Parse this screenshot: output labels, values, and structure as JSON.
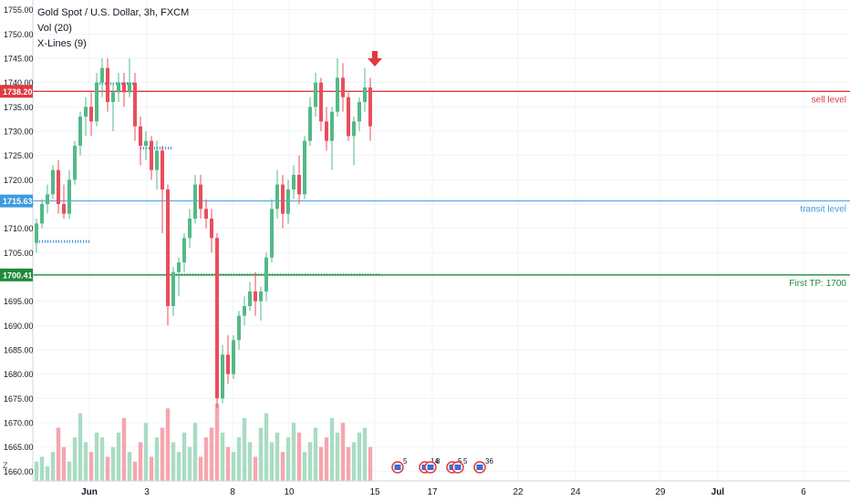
{
  "legend": {
    "title": "Gold Spot / U.S. Dollar, 3h, FXCM",
    "study_vol": "Vol (20)",
    "study_xlines": "X-Lines (9)"
  },
  "colors": {
    "up": "#53b987",
    "down": "#eb4d5c",
    "vol_up": "#a9dcc3",
    "vol_down": "#f5a6ae",
    "sell": "#e0393e",
    "transit": "#3d9be0",
    "tp": "#1e8a3a",
    "xline": "#3a8fd6",
    "xline_tp": "#7fcaa2"
  },
  "chart_data": {
    "type": "candlestick",
    "ylim": [
      1658,
      1757
    ],
    "yticks": [
      1660,
      1665,
      1670,
      1675,
      1680,
      1685,
      1690,
      1695,
      1700,
      1705,
      1710,
      1715,
      1720,
      1725,
      1730,
      1735,
      1740,
      1745,
      1750,
      1755
    ],
    "xticks": [
      "Jun",
      "3",
      "8",
      "10",
      "15",
      "17",
      "22",
      "24",
      "29",
      "Jul",
      "6"
    ],
    "bar_count": 62,
    "ohlc": [
      [
        1707,
        1712,
        1705,
        1711
      ],
      [
        1711,
        1716,
        1710,
        1715
      ],
      [
        1715,
        1719,
        1713,
        1717
      ],
      [
        1717,
        1723,
        1716,
        1722
      ],
      [
        1722,
        1724,
        1713,
        1715
      ],
      [
        1715,
        1719,
        1712,
        1713
      ],
      [
        1713,
        1722,
        1712,
        1720
      ],
      [
        1720,
        1728,
        1719,
        1727
      ],
      [
        1727,
        1734,
        1725,
        1733
      ],
      [
        1733,
        1737,
        1729,
        1735
      ],
      [
        1735,
        1738,
        1729,
        1732
      ],
      [
        1732,
        1742,
        1731,
        1740
      ],
      [
        1740,
        1745,
        1737,
        1743
      ],
      [
        1743,
        1745,
        1734,
        1736
      ],
      [
        1736,
        1740,
        1730,
        1738
      ],
      [
        1738,
        1742,
        1736,
        1740
      ],
      [
        1740,
        1742,
        1735,
        1738
      ],
      [
        1738,
        1745,
        1737,
        1740
      ],
      [
        1740,
        1742,
        1728,
        1731
      ],
      [
        1731,
        1733,
        1723,
        1727
      ],
      [
        1727,
        1730,
        1724,
        1728
      ],
      [
        1728,
        1729,
        1720,
        1722
      ],
      [
        1722,
        1728,
        1718,
        1726
      ],
      [
        1726,
        1727,
        1709,
        1718
      ],
      [
        1718,
        1719,
        1690,
        1694
      ],
      [
        1694,
        1702,
        1692,
        1701
      ],
      [
        1701,
        1704,
        1696,
        1703
      ],
      [
        1703,
        1709,
        1701,
        1708
      ],
      [
        1708,
        1714,
        1706,
        1712
      ],
      [
        1712,
        1721,
        1711,
        1719
      ],
      [
        1719,
        1721,
        1712,
        1714
      ],
      [
        1714,
        1716,
        1710,
        1712
      ],
      [
        1712,
        1714,
        1705,
        1708
      ],
      [
        1708,
        1709,
        1673,
        1675
      ],
      [
        1675,
        1686,
        1674,
        1684
      ],
      [
        1684,
        1688,
        1678,
        1680
      ],
      [
        1680,
        1688,
        1679,
        1687
      ],
      [
        1687,
        1693,
        1685,
        1692
      ],
      [
        1692,
        1696,
        1690,
        1694
      ],
      [
        1694,
        1699,
        1693,
        1697
      ],
      [
        1697,
        1701,
        1692,
        1695
      ],
      [
        1695,
        1698,
        1691,
        1697
      ],
      [
        1697,
        1705,
        1695,
        1704
      ],
      [
        1704,
        1716,
        1703,
        1714
      ],
      [
        1714,
        1722,
        1712,
        1719
      ],
      [
        1719,
        1721,
        1710,
        1713
      ],
      [
        1713,
        1720,
        1711,
        1718
      ],
      [
        1718,
        1723,
        1716,
        1721
      ],
      [
        1721,
        1725,
        1715,
        1717
      ],
      [
        1717,
        1729,
        1716,
        1728
      ],
      [
        1728,
        1737,
        1727,
        1735
      ],
      [
        1735,
        1742,
        1733,
        1740
      ],
      [
        1740,
        1741,
        1730,
        1732
      ],
      [
        1732,
        1735,
        1726,
        1728
      ],
      [
        1728,
        1735,
        1722,
        1734
      ],
      [
        1734,
        1745,
        1733,
        1741
      ],
      [
        1741,
        1744,
        1734,
        1737
      ],
      [
        1737,
        1738,
        1728,
        1729
      ],
      [
        1729,
        1733,
        1723,
        1732
      ],
      [
        1732,
        1737,
        1730,
        1736
      ],
      [
        1736,
        1743,
        1734,
        1739
      ],
      [
        1739,
        1741,
        1728,
        1731
      ]
    ],
    "volume": [
      4,
      5,
      3,
      6,
      11,
      7,
      4,
      9,
      14,
      8,
      6,
      10,
      9,
      5,
      7,
      10,
      13,
      6,
      4,
      8,
      12,
      5,
      9,
      11,
      15,
      8,
      6,
      10,
      7,
      12,
      5,
      9,
      11,
      16,
      10,
      7,
      6,
      9,
      13,
      8,
      5,
      11,
      14,
      8,
      10,
      6,
      9,
      12,
      10,
      6,
      8,
      11,
      7,
      9,
      13,
      10,
      12,
      7,
      8,
      10,
      11,
      7
    ],
    "sell_level": {
      "value": 1738.2,
      "label": "1738.20",
      "text": "sell level"
    },
    "transit_level": {
      "value": 1715.63,
      "label": "1715.63",
      "text": "transit level"
    },
    "tp_level": {
      "value": 1700.41,
      "label": "1700.41",
      "text": "First TP: 1700"
    },
    "xlines": [
      {
        "value": 1739.8,
        "from": 11,
        "to": 18
      },
      {
        "value": 1726.5,
        "from": 19,
        "to": 25
      },
      {
        "value": 1707.3,
        "from": 0,
        "to": 10
      },
      {
        "value": 1700.5,
        "from": 25,
        "to": 63
      }
    ],
    "events": [
      {
        "slot": 66,
        "text": "5"
      },
      {
        "slot": 71,
        "text": "14"
      },
      {
        "slot": 72,
        "text": "8"
      },
      {
        "slot": 76,
        "text": "5"
      },
      {
        "slot": 77,
        "text": "5"
      },
      {
        "slot": 81,
        "text": "36"
      }
    ]
  }
}
